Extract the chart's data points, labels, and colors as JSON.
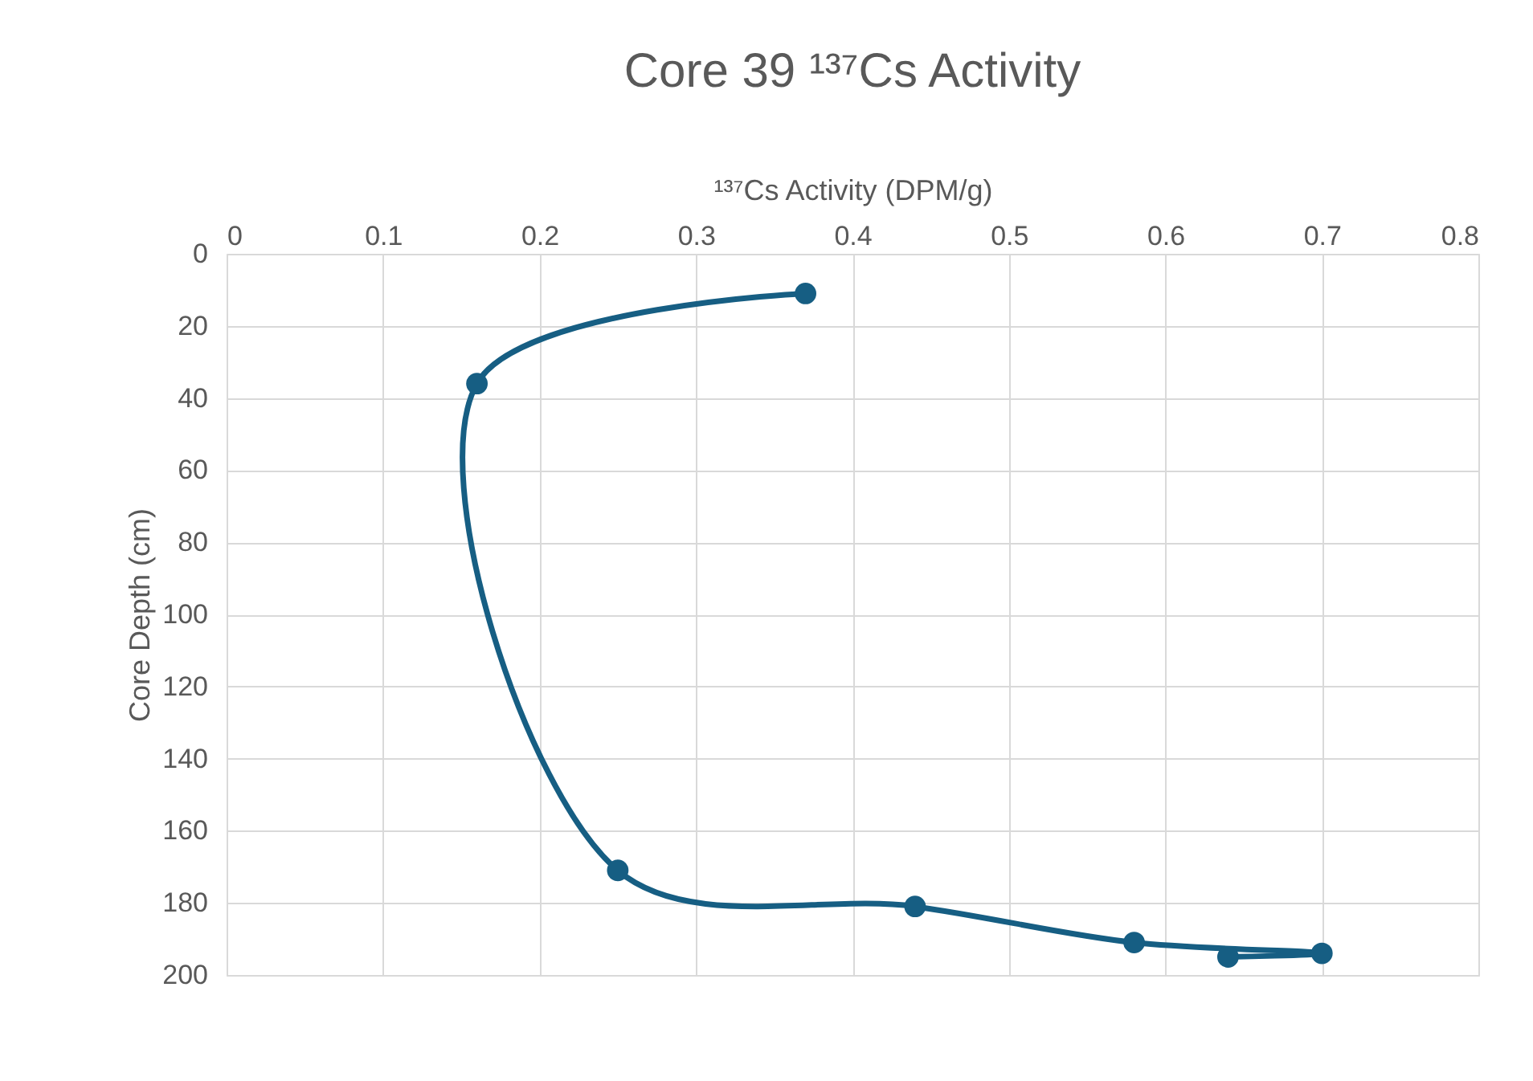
{
  "chart_data": {
    "type": "line",
    "title": "Core 39 ¹³⁷Cs Activity",
    "xlabel": "¹³⁷Cs Activity (DPM/g)",
    "ylabel": "Core Depth (cm)",
    "x": [
      0.37,
      0.16,
      0.25,
      0.44,
      0.58,
      0.7,
      0.64
    ],
    "series": [
      {
        "color": "#165e83",
        "values": [
          11,
          36,
          171,
          181,
          191,
          194,
          195
        ]
      }
    ],
    "xlim": [
      0,
      0.8
    ],
    "xticks": [
      0,
      0.1,
      0.2,
      0.3,
      0.4,
      0.5,
      0.6,
      0.7,
      0.8
    ],
    "ylim": [
      200,
      0
    ],
    "yticks": [
      0,
      20,
      40,
      60,
      80,
      100,
      120,
      140,
      160,
      180,
      200
    ],
    "grid": true,
    "marker": "circle",
    "line_style": "solid",
    "legend": false
  }
}
